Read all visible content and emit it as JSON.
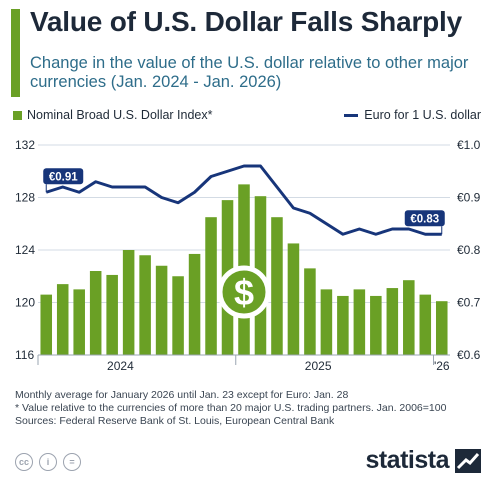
{
  "header": {
    "title": "Value of U.S. Dollar Falls Sharply",
    "subtitle": "Change in the value of the U.S. dollar relative to other major currencies (Jan. 2024 - Jan. 2026)"
  },
  "legend": {
    "bars_label": "Nominal Broad U.S. Dollar Index*",
    "line_label": "Euro for 1 U.S. dollar"
  },
  "colors": {
    "bars": "#6aa025",
    "line": "#17357a",
    "label_bg": "#17357a",
    "accent": "#6aa025",
    "grid": "#d3dbe4"
  },
  "chart_data": {
    "type": "bar+line",
    "x_tick_labels": [
      {
        "label": "2024",
        "index": 4.5
      },
      {
        "label": "2025",
        "index": 16.5
      },
      {
        "label": "'26",
        "index": 24
      }
    ],
    "bar_series": {
      "name": "Nominal Broad U.S. Dollar Index*",
      "axis": "left",
      "ylim": [
        116,
        132
      ],
      "yticks": [
        "132",
        "128",
        "124",
        "120",
        "116"
      ],
      "values": [
        120.6,
        121.4,
        121.0,
        122.4,
        122.1,
        124.0,
        123.6,
        122.8,
        122.0,
        123.7,
        126.5,
        127.8,
        129.0,
        128.1,
        126.5,
        124.5,
        122.6,
        121.0,
        120.5,
        121.0,
        120.5,
        121.1,
        121.7,
        120.6,
        120.1
      ]
    },
    "line_series": {
      "name": "Euro for 1 U.S. dollar",
      "axis": "right",
      "ylim": [
        0.6,
        1.0
      ],
      "yticks": [
        "€1.0",
        "€0.9",
        "€0.8",
        "€0.7",
        "€0.6"
      ],
      "values": [
        0.91,
        0.92,
        0.91,
        0.93,
        0.92,
        0.92,
        0.92,
        0.9,
        0.89,
        0.91,
        0.94,
        0.95,
        0.96,
        0.96,
        0.92,
        0.88,
        0.87,
        0.85,
        0.83,
        0.84,
        0.83,
        0.84,
        0.84,
        0.83,
        0.83
      ]
    },
    "annotations": [
      {
        "label": "€0.91",
        "index": 0
      },
      {
        "label": "€0.83",
        "index": 24
      }
    ],
    "center_icon": "dollar-sign-icon",
    "grid": true
  },
  "footer": {
    "note1": "Monthly average for January 2026 until Jan. 23 except for Euro: Jan. 28",
    "note2": "* Value relative to the currencies of more than 20 major U.S. trading partners. Jan. 2006=100",
    "sources": "Sources: Federal Reserve Bank of St. Louis, European Central Bank",
    "brand": "statista",
    "license_icons": [
      "cc-icon",
      "by-icon",
      "nd-icon"
    ]
  }
}
